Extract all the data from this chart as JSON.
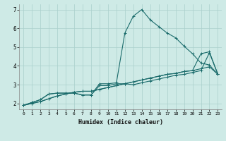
{
  "xlabel": "Humidex (Indice chaleur)",
  "bg_color": "#ceeae6",
  "grid_color": "#aacfcc",
  "line_color": "#1a6b6b",
  "xlim": [
    -0.5,
    23.5
  ],
  "ylim": [
    1.7,
    7.3
  ],
  "xticks": [
    0,
    1,
    2,
    3,
    4,
    5,
    6,
    7,
    8,
    9,
    10,
    11,
    12,
    13,
    14,
    15,
    16,
    17,
    18,
    19,
    20,
    21,
    22,
    23
  ],
  "yticks": [
    2,
    3,
    4,
    5,
    6,
    7
  ],
  "series": [
    [
      1.9,
      2.05,
      2.2,
      2.5,
      2.55,
      2.55,
      2.55,
      2.45,
      2.45,
      3.05,
      3.05,
      3.1,
      5.75,
      6.65,
      7.0,
      6.45,
      6.1,
      5.75,
      5.5,
      5.05,
      4.65,
      4.15,
      4.05,
      3.55
    ],
    [
      1.9,
      2.05,
      2.2,
      2.5,
      2.55,
      2.55,
      2.55,
      2.45,
      2.45,
      2.95,
      2.95,
      3.05,
      3.05,
      3.0,
      3.1,
      3.2,
      3.3,
      3.4,
      3.5,
      3.55,
      3.65,
      3.75,
      4.7,
      3.55
    ],
    [
      1.9,
      2.0,
      2.1,
      2.25,
      2.4,
      2.5,
      2.6,
      2.65,
      2.65,
      2.75,
      2.85,
      2.95,
      3.05,
      3.15,
      3.25,
      3.35,
      3.45,
      3.55,
      3.6,
      3.7,
      3.75,
      3.85,
      3.95,
      3.55
    ],
    [
      1.9,
      2.0,
      2.1,
      2.25,
      2.4,
      2.5,
      2.6,
      2.65,
      2.65,
      2.75,
      2.85,
      2.95,
      3.05,
      3.15,
      3.25,
      3.35,
      3.45,
      3.55,
      3.6,
      3.7,
      3.75,
      4.65,
      4.75,
      3.55
    ]
  ],
  "linewidth": 0.8,
  "markersize": 3.0
}
